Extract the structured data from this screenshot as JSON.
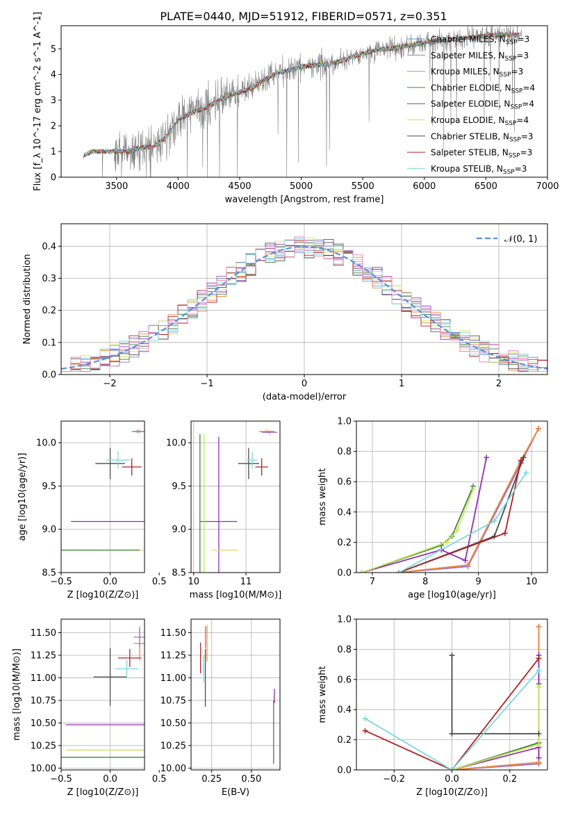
{
  "figure": {
    "title": "PLATE=0440, MJD=51912, FIBERID=0571, z=0.351"
  },
  "colors": {
    "Chabrier MILES": "#5b8fd6",
    "Salpeter MILES": "#9b6fc9",
    "Kroupa MILES": "#f08a3c",
    "Chabrier ELODIE": "#3f7f3f",
    "Salpeter ELODIE": "#8e2fb0",
    "Kroupa ELODIE": "#c9e65a",
    "Chabrier STELIB": "#4a4a4a",
    "Salpeter STELIB": "#b02020",
    "Kroupa STELIB": "#7fd8e0",
    "data": "#808080",
    "normal": "#5b8fd6",
    "pink": "#e87fb8"
  },
  "chart_data": [
    {
      "id": "spectrum",
      "type": "line",
      "title": "PLATE=0440, MJD=51912, FIBERID=0571, z=0.351",
      "xlabel": "wavelength [Angstrom, rest frame]",
      "ylabel": "Flux [f_λ 10^-17 erg cm^-2 s^-1 A^-1]",
      "xlim": [
        3050,
        7000
      ],
      "ylim": [
        0,
        5.9
      ],
      "xticks": [
        3500,
        4000,
        4500,
        5000,
        5500,
        6000,
        6500,
        7000
      ],
      "yticks": [
        0,
        1,
        2,
        3,
        4,
        5
      ],
      "legend_position": "top-right",
      "legend": [
        {
          "name": "Chabrier MILES",
          "nssp": "3"
        },
        {
          "name": "Salpeter MILES",
          "nssp": "3"
        },
        {
          "name": "Kroupa MILES",
          "nssp": "3"
        },
        {
          "name": "Chabrier ELODIE",
          "nssp": "4"
        },
        {
          "name": "Salpeter ELODIE",
          "nssp": "4"
        },
        {
          "name": "Kroupa ELODIE",
          "nssp": "4"
        },
        {
          "name": "Chabrier STELIB",
          "nssp": "3"
        },
        {
          "name": "Salpeter STELIB",
          "nssp": "3"
        },
        {
          "name": "Kroupa STELIB",
          "nssp": "3"
        }
      ],
      "model_x": [
        3230,
        3300,
        3400,
        3500,
        3600,
        3700,
        3800,
        3900,
        4000,
        4100,
        4200,
        4300,
        4400,
        4500,
        4600,
        4700,
        4800,
        4900,
        5000,
        5100,
        5200,
        5300,
        5400,
        5500,
        5600,
        5700,
        5800,
        5900,
        6000,
        6100,
        6200,
        6300,
        6400,
        6500,
        6600,
        6700,
        6780
      ],
      "model_y": [
        0.85,
        1.0,
        1.0,
        1.0,
        1.0,
        1.15,
        1.2,
        1.55,
        2.2,
        2.5,
        2.65,
        2.9,
        3.15,
        3.3,
        3.45,
        3.8,
        4.05,
        4.15,
        4.3,
        4.35,
        4.4,
        4.5,
        4.65,
        4.8,
        4.95,
        5.0,
        5.05,
        5.15,
        5.25,
        5.3,
        5.35,
        5.4,
        5.45,
        5.5,
        5.55,
        5.55,
        5.55
      ]
    },
    {
      "id": "residuals",
      "type": "line",
      "xlabel": "(data-model)/error",
      "ylabel": "Normed distribution",
      "xlim": [
        -2.5,
        2.5
      ],
      "ylim": [
        0,
        0.47
      ],
      "xticks": [
        -2,
        -1,
        0,
        1,
        2
      ],
      "yticks": [
        0.0,
        0.1,
        0.2,
        0.3,
        0.4
      ],
      "legend": [
        "𝒩(0, 1)"
      ],
      "legend_position": "top-right",
      "normal_mean": 0,
      "normal_sigma": 1
    },
    {
      "id": "age_vs_Z",
      "type": "scatter",
      "xlabel": "Z [log10(Z/Z⊙)]",
      "ylabel": "age [log10(age/yr)]",
      "xlim": [
        -0.5,
        0.35
      ],
      "ylim": [
        8.5,
        10.25
      ],
      "xticks": [
        -0.5,
        0.0,
        0.5
      ],
      "yticks": [
        8.5,
        9.0,
        9.5,
        10.0
      ],
      "points": [
        {
          "series": "Chabrier STELIB",
          "x": 0.0,
          "y": 9.76,
          "xerr": 0.15,
          "yerr": 0.18
        },
        {
          "series": "Kroupa STELIB",
          "x": 0.08,
          "y": 9.8,
          "xerr": 0.12,
          "yerr": 0.1
        },
        {
          "series": "Salpeter STELIB",
          "x": 0.22,
          "y": 9.72,
          "xerr": 0.1,
          "yerr": 0.1
        },
        {
          "series": "Kroupa MILES",
          "x": 0.3,
          "y": 10.13,
          "xerr": 0.06,
          "yerr": 0.02
        },
        {
          "series": "Salpeter MILES",
          "x": 0.28,
          "y": 10.13,
          "xerr": 0.06,
          "yerr": 0.02
        },
        {
          "series": "Salpeter ELODIE",
          "x": 0.0,
          "y": 9.09,
          "xerr": 0.4,
          "yerr": 0.0
        },
        {
          "series": "Kroupa ELODIE",
          "x": -0.05,
          "y": 8.76,
          "xerr": 0.4,
          "yerr": 0.0
        },
        {
          "series": "Chabrier ELODIE",
          "x": -0.1,
          "y": 8.76,
          "xerr": 0.4,
          "yerr": 0.0
        }
      ]
    },
    {
      "id": "age_vs_mass",
      "type": "scatter",
      "xlabel": "mass [log10(M/M⊙)]",
      "xlim": [
        9.95,
        11.65
      ],
      "ylim": [
        8.5,
        10.25
      ],
      "xticks": [
        10,
        11
      ],
      "yticks": [
        8.5,
        9.0,
        9.5,
        10.0
      ],
      "points": [
        {
          "series": "Chabrier STELIB",
          "x": 11.05,
          "y": 9.76,
          "xerr": 0.2,
          "yerr": 0.18
        },
        {
          "series": "Kroupa STELIB",
          "x": 11.12,
          "y": 9.8,
          "xerr": 0.1,
          "yerr": 0.1
        },
        {
          "series": "Salpeter STELIB",
          "x": 11.3,
          "y": 9.72,
          "xerr": 0.12,
          "yerr": 0.1
        },
        {
          "series": "Kroupa MILES",
          "x": 11.4,
          "y": 10.13,
          "xerr": 0.15,
          "yerr": 0.02
        },
        {
          "series": "Salpeter MILES",
          "x": 11.45,
          "y": 10.12,
          "xerr": 0.15,
          "yerr": 0.02
        },
        {
          "series": "Salpeter ELODIE",
          "x": 10.48,
          "y": 9.09,
          "xerr": 0.35,
          "yerr": 0.98
        },
        {
          "series": "Kroupa ELODIE",
          "x": 10.2,
          "y": 8.76,
          "xerr": 0.0,
          "yerr": 1.34
        },
        {
          "series": "Chabrier ELODIE",
          "x": 10.12,
          "y": 8.76,
          "xerr": 0.0,
          "yerr": 1.34
        },
        {
          "series": "Kroupa ELODIE",
          "x": 10.6,
          "y": 8.76,
          "xerr": 0.25,
          "yerr": 0.0
        }
      ]
    },
    {
      "id": "cumulative_age",
      "type": "line",
      "xlabel": "age [log10(age/yr)]",
      "ylabel": "mass weight",
      "xlim": [
        6.7,
        10.3
      ],
      "ylim": [
        0,
        1.0
      ],
      "xticks": [
        7,
        8,
        9,
        10
      ],
      "yticks": [
        0.0,
        0.2,
        0.4,
        0.6,
        0.8,
        1.0
      ],
      "series": [
        {
          "name": "Chabrier MILES",
          "x": [
            7.5,
            8.8,
            9.8,
            10.13
          ],
          "y": [
            0.0,
            0.05,
            0.73,
            0.95
          ]
        },
        {
          "name": "Salpeter MILES",
          "x": [
            7.5,
            8.8,
            9.8,
            10.13
          ],
          "y": [
            0.0,
            0.04,
            0.72,
            0.95
          ]
        },
        {
          "name": "Kroupa MILES",
          "x": [
            7.5,
            8.8,
            9.8,
            10.13
          ],
          "y": [
            0.0,
            0.05,
            0.74,
            0.95
          ]
        },
        {
          "name": "Chabrier ELODIE",
          "x": [
            6.8,
            8.3,
            8.5,
            8.9
          ],
          "y": [
            0.0,
            0.18,
            0.24,
            0.57
          ]
        },
        {
          "name": "Salpeter ELODIE",
          "x": [
            6.8,
            8.3,
            8.75,
            9.15
          ],
          "y": [
            0.0,
            0.15,
            0.08,
            0.76
          ]
        },
        {
          "name": "Kroupa ELODIE",
          "x": [
            6.8,
            8.4,
            8.6,
            8.9
          ],
          "y": [
            0.0,
            0.2,
            0.28,
            0.55
          ]
        },
        {
          "name": "Chabrier STELIB",
          "x": [
            7.5,
            9.3,
            9.85
          ],
          "y": [
            0.0,
            0.24,
            0.76
          ]
        },
        {
          "name": "Salpeter STELIB",
          "x": [
            7.5,
            9.5,
            9.8
          ],
          "y": [
            0.0,
            0.26,
            0.74
          ]
        },
        {
          "name": "Kroupa STELIB",
          "x": [
            7.5,
            9.3,
            9.9
          ],
          "y": [
            0.0,
            0.34,
            0.66
          ]
        }
      ]
    },
    {
      "id": "mass_vs_Z",
      "type": "scatter",
      "xlabel": "Z [log10(Z/Z⊙)]",
      "ylabel": "mass [log10(M/M⊙)]",
      "xlim": [
        -0.5,
        0.35
      ],
      "ylim": [
        9.98,
        11.65
      ],
      "xticks": [
        -0.5,
        0.0,
        0.5
      ],
      "yticks": [
        10.0,
        10.25,
        10.5,
        10.75,
        11.0,
        11.25,
        11.5
      ],
      "points": [
        {
          "series": "Chabrier STELIB",
          "x": 0.0,
          "y": 11.01,
          "xerr": 0.17,
          "yerr": 0.32
        },
        {
          "series": "Kroupa STELIB",
          "x": 0.17,
          "y": 11.1,
          "xerr": 0.12,
          "yerr": 0.1
        },
        {
          "series": "Salpeter STELIB",
          "x": 0.2,
          "y": 11.22,
          "xerr": 0.12,
          "yerr": 0.1
        },
        {
          "series": "Kroupa MILES",
          "x": 0.3,
          "y": 11.38,
          "xerr": 0.06,
          "yerr": 0.19
        },
        {
          "series": "Salpeter MILES",
          "x": 0.3,
          "y": 11.45,
          "xerr": 0.06,
          "yerr": 0.1
        },
        {
          "series": "Salpeter ELODIE",
          "x": -0.05,
          "y": 10.48,
          "xerr": 0.4,
          "yerr": 0.0
        },
        {
          "series": "Kroupa ELODIE",
          "x": -0.05,
          "y": 10.2,
          "xerr": 0.4,
          "yerr": 0.0
        },
        {
          "series": "Chabrier ELODIE",
          "x": -0.1,
          "y": 10.12,
          "xerr": 0.45,
          "yerr": 0.0
        }
      ]
    },
    {
      "id": "mass_vs_EBV",
      "type": "scatter",
      "xlabel": "E(B-V)",
      "xlim": [
        0.12,
        0.68
      ],
      "ylim": [
        9.98,
        11.65
      ],
      "xticks": [
        0.25,
        0.5
      ],
      "yticks": [
        10.0,
        10.25,
        10.5,
        10.75,
        11.0,
        11.25,
        11.5
      ],
      "points": [
        {
          "series": "Chabrier STELIB",
          "x": 0.21,
          "y": 11.0,
          "xerr": 0.0,
          "yerr": 0.32
        },
        {
          "series": "Kroupa STELIB",
          "x": 0.2,
          "y": 11.1,
          "xerr": 0.0,
          "yerr": 0.15
        },
        {
          "series": "Salpeter STELIB",
          "x": 0.18,
          "y": 11.22,
          "xerr": 0.0,
          "yerr": 0.17
        },
        {
          "series": "Kroupa MILES",
          "x": 0.22,
          "y": 11.38,
          "xerr": 0.0,
          "yerr": 0.2
        },
        {
          "series": "Salpeter MILES",
          "x": 0.21,
          "y": 11.45,
          "xerr": 0.0,
          "yerr": 0.12
        },
        {
          "series": "Salpeter ELODIE",
          "x": 0.645,
          "y": 10.8,
          "xerr": 0.0,
          "yerr": 0.08
        },
        {
          "series": "Kroupa ELODIE",
          "x": 0.64,
          "y": 10.42,
          "xerr": 0.0,
          "yerr": 0.38
        },
        {
          "series": "Chabrier ELODIE",
          "x": 0.64,
          "y": 10.4,
          "xerr": 0.0,
          "yerr": 0.35
        }
      ]
    },
    {
      "id": "cumulative_Z",
      "type": "line",
      "xlabel": "Z [log10(Z/Z⊙)]",
      "ylabel": "mass weight",
      "xlim": [
        -0.33,
        0.33
      ],
      "ylim": [
        0,
        1.0
      ],
      "xticks": [
        -0.2,
        0.0,
        0.2
      ],
      "yticks": [
        0.0,
        0.2,
        0.4,
        0.6,
        0.8,
        1.0
      ],
      "series": [
        {
          "name": "Chabrier MILES",
          "x": [
            0.0,
            0.3,
            0.3
          ],
          "y": [
            0.0,
            0.05,
            0.95
          ]
        },
        {
          "name": "Salpeter MILES",
          "x": [
            0.0,
            0.3,
            0.3
          ],
          "y": [
            0.0,
            0.04,
            0.95
          ]
        },
        {
          "name": "Kroupa MILES",
          "x": [
            0.0,
            0.3,
            0.3
          ],
          "y": [
            0.0,
            0.05,
            0.95
          ]
        },
        {
          "name": "Chabrier ELODIE",
          "x": [
            0.0,
            0.3,
            0.3
          ],
          "y": [
            0.0,
            0.18,
            0.57
          ]
        },
        {
          "name": "Salpeter ELODIE",
          "x": [
            0.0,
            0.3,
            0.3,
            0.3
          ],
          "y": [
            0.0,
            0.15,
            0.08,
            0.76
          ]
        },
        {
          "name": "Kroupa ELODIE",
          "x": [
            0.0,
            0.3,
            0.3
          ],
          "y": [
            0.0,
            0.17,
            0.55
          ]
        },
        {
          "name": "Chabrier STELIB",
          "x": [
            0.0,
            0.0,
            0.3
          ],
          "y": [
            0.76,
            0.24,
            0.24
          ]
        },
        {
          "name": "Salpeter STELIB",
          "x": [
            -0.3,
            0.0,
            0.3
          ],
          "y": [
            0.26,
            0.0,
            0.74
          ]
        },
        {
          "name": "Kroupa STELIB",
          "x": [
            -0.3,
            0.0,
            0.3
          ],
          "y": [
            0.34,
            0.0,
            0.66
          ]
        }
      ]
    }
  ]
}
